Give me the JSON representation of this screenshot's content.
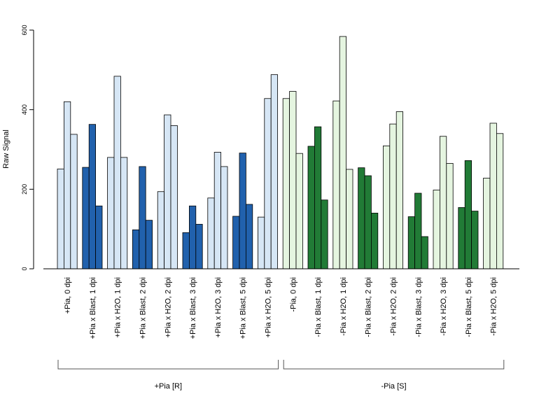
{
  "chart_data": {
    "type": "bar",
    "ylabel": "Raw Signal",
    "ylim": [
      0,
      600
    ],
    "yticks": [
      0,
      200,
      400,
      600
    ],
    "bars_per_category": 3,
    "categories": [
      "+Pia, 0 dpi",
      "+Pia x Blast, 1 dpi",
      "+Pia x H2O, 1 dpi",
      "+Pia x Blast, 2 dpi",
      "+Pia x H2O, 2 dpi",
      "+Pia x Blast, 3 dpi",
      "+Pia x H2O, 3 dpi",
      "+Pia x Blast, 5 dpi",
      "+Pia x H2O, 5 dpi",
      "-Pia, 0 dpi",
      "-Pia x Blast, 1 dpi",
      "-Pia x H2O, 1 dpi",
      "-Pia x Blast, 2 dpi",
      "-Pia x H2O, 2 dpi",
      "-Pia x Blast, 3 dpi",
      "-Pia x H2O, 3 dpi",
      "-Pia x Blast, 5 dpi",
      "-Pia x H2O, 5 dpi"
    ],
    "values": [
      [
        251,
        420,
        338
      ],
      [
        255,
        363,
        158
      ],
      [
        280,
        484,
        280
      ],
      [
        98,
        257,
        122
      ],
      [
        194,
        387,
        360
      ],
      [
        91,
        158,
        112
      ],
      [
        178,
        293,
        257
      ],
      [
        132,
        291,
        162
      ],
      [
        130,
        428,
        488
      ],
      [
        428,
        446,
        290
      ],
      [
        308,
        357,
        173
      ],
      [
        422,
        584,
        250
      ],
      [
        254,
        234,
        140
      ],
      [
        309,
        364,
        395
      ],
      [
        131,
        190,
        81
      ],
      [
        198,
        333,
        265
      ],
      [
        154,
        272,
        145
      ],
      [
        228,
        366,
        340
      ]
    ],
    "colors": [
      "light-blue",
      "dark-blue",
      "light-blue",
      "dark-blue",
      "light-blue",
      "dark-blue",
      "light-blue",
      "dark-blue",
      "light-blue",
      "light-green",
      "dark-green",
      "light-green",
      "dark-green",
      "light-green",
      "dark-green",
      "light-green",
      "dark-green",
      "light-green"
    ],
    "palette": {
      "light-blue": "#d6e6f5",
      "dark-blue": "#2161ad",
      "light-green": "#e5f5e0",
      "dark-green": "#217b36"
    },
    "groups": [
      {
        "label": "+Pia [R]",
        "from": 0,
        "to": 8
      },
      {
        "label": "-Pia [S]",
        "from": 9,
        "to": 17
      }
    ],
    "grid": false
  }
}
